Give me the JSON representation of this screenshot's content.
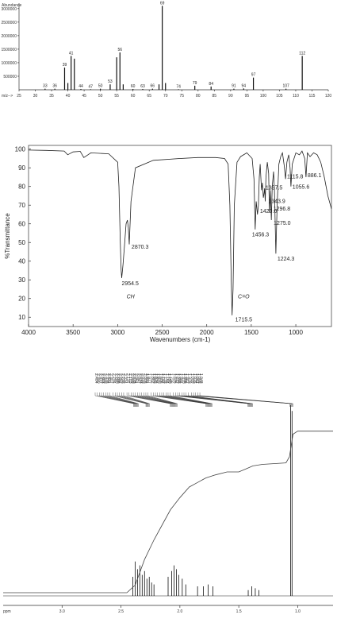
{
  "chart_data": [
    {
      "type": "bar",
      "title": "",
      "ylabel": "Abundance",
      "xlabel_short": "m/z-->",
      "xlim": [
        25,
        120
      ],
      "ylim": [
        0,
        3200000
      ],
      "xticks": [
        25,
        30,
        35,
        40,
        45,
        50,
        55,
        60,
        65,
        70,
        75,
        80,
        85,
        90,
        95,
        100,
        105,
        110,
        115,
        120
      ],
      "yticks": [
        500000,
        1000000,
        1500000,
        2000000,
        2500000,
        3000000
      ],
      "peaks": [
        {
          "mz": 33,
          "value": 40000,
          "label": "33"
        },
        {
          "mz": 36,
          "value": 40000,
          "label": "36"
        },
        {
          "mz": 39,
          "value": 820000,
          "label": "39"
        },
        {
          "mz": 40,
          "value": 250000,
          "label": ""
        },
        {
          "mz": 41,
          "value": 1250000,
          "label": "41"
        },
        {
          "mz": 42,
          "value": 1150000,
          "label": ""
        },
        {
          "mz": 44,
          "value": 30000,
          "label": "44"
        },
        {
          "mz": 47,
          "value": 20000,
          "label": "47"
        },
        {
          "mz": 50,
          "value": 40000,
          "label": "50"
        },
        {
          "mz": 53,
          "value": 200000,
          "label": "53"
        },
        {
          "mz": 55,
          "value": 1200000,
          "label": ""
        },
        {
          "mz": 56,
          "value": 1380000,
          "label": "56"
        },
        {
          "mz": 57,
          "value": 200000,
          "label": ""
        },
        {
          "mz": 60,
          "value": 30000,
          "label": "60"
        },
        {
          "mz": 63,
          "value": 30000,
          "label": "63"
        },
        {
          "mz": 66,
          "value": 40000,
          "label": "66"
        },
        {
          "mz": 68,
          "value": 200000,
          "label": ""
        },
        {
          "mz": 69,
          "value": 3100000,
          "label": "69"
        },
        {
          "mz": 70,
          "value": 250000,
          "label": ""
        },
        {
          "mz": 74,
          "value": 20000,
          "label": "74"
        },
        {
          "mz": 79,
          "value": 150000,
          "label": "79"
        },
        {
          "mz": 84,
          "value": 120000,
          "label": "84"
        },
        {
          "mz": 91,
          "value": 40000,
          "label": "91"
        },
        {
          "mz": 94,
          "value": 50000,
          "label": "94"
        },
        {
          "mz": 97,
          "value": 450000,
          "label": "97"
        },
        {
          "mz": 107,
          "value": 40000,
          "label": "107"
        },
        {
          "mz": 112,
          "value": 1250000,
          "label": "112"
        }
      ]
    },
    {
      "type": "line",
      "title": "",
      "xlabel": "Wavenumbers (cm-1)",
      "ylabel": "%Transmittance",
      "xlim": [
        4000,
        600
      ],
      "ylim": [
        5,
        102
      ],
      "xticks": [
        4000,
        3500,
        3000,
        2500,
        2000,
        1500,
        1000
      ],
      "yticks": [
        10,
        20,
        30,
        40,
        50,
        60,
        70,
        80,
        90,
        100
      ],
      "x": [
        4000,
        3800,
        3600,
        3560,
        3500,
        3420,
        3380,
        3300,
        3100,
        3000,
        2985,
        2970,
        2960,
        2954,
        2940,
        2920,
        2905,
        2890,
        2880,
        2870,
        2850,
        2800,
        2600,
        2300,
        2100,
        1900,
        1800,
        1760,
        1740,
        1725,
        1715,
        1705,
        1690,
        1660,
        1620,
        1550,
        1490,
        1470,
        1456,
        1445,
        1430,
        1420,
        1410,
        1400,
        1385,
        1375,
        1365,
        1357,
        1350,
        1343,
        1335,
        1320,
        1305,
        1296,
        1285,
        1275,
        1265,
        1250,
        1240,
        1224,
        1210,
        1190,
        1170,
        1150,
        1130,
        1115,
        1100,
        1080,
        1065,
        1055,
        1040,
        1000,
        960,
        930,
        900,
        886,
        870,
        840,
        800,
        760,
        720,
        680,
        640,
        600
      ],
      "y": [
        99.5,
        99.3,
        99,
        97,
        98.5,
        98.8,
        95.5,
        98,
        97.5,
        93,
        80,
        50,
        35,
        31,
        38,
        50,
        60,
        62,
        58,
        49,
        72,
        90,
        94,
        95,
        95.5,
        95.5,
        95,
        92,
        70,
        30,
        11,
        25,
        70,
        93,
        96,
        98,
        95,
        84,
        57,
        72,
        65,
        70,
        85,
        92,
        78,
        82,
        74,
        76,
        79,
        72,
        85,
        93,
        87,
        66,
        78,
        62,
        80,
        88,
        78,
        44,
        70,
        92,
        96,
        98,
        91,
        84,
        93,
        97,
        90,
        80,
        92,
        98,
        97,
        99,
        95,
        85,
        98,
        96,
        98,
        97,
        93,
        85,
        75,
        68
      ],
      "peak_labels": [
        {
          "x": 2954.5,
          "text": "2954.5"
        },
        {
          "x": 2870.3,
          "text": "2870.3"
        },
        {
          "x": 1715.5,
          "text": "1715.5"
        },
        {
          "x": 1456.3,
          "text": "1456.3"
        },
        {
          "x": 1420.0,
          "text": "1420.0"
        },
        {
          "x": 1357.5,
          "text": "1357.5"
        },
        {
          "x": 1343.9,
          "text": "1343.9"
        },
        {
          "x": 1296.8,
          "text": "1296.8"
        },
        {
          "x": 1275.0,
          "text": "1275.0"
        },
        {
          "x": 1224.3,
          "text": "1224.3"
        },
        {
          "x": 1115.8,
          "text": "1115.8"
        },
        {
          "x": 1055.6,
          "text": "1055.6"
        },
        {
          "x": 886.1,
          "text": "886.1"
        }
      ],
      "annotations": [
        {
          "text": "CH",
          "x": 2900
        },
        {
          "text": "C=O",
          "x": 1650
        }
      ]
    },
    {
      "type": "line",
      "title": "",
      "xlabel": "ppm",
      "xlim": [
        3.5,
        0.7
      ],
      "xticks": [
        3.0,
        2.5,
        2.0,
        1.5,
        1.0
      ],
      "xtick_labels": [
        "3.0",
        "2.5",
        "2.0",
        "1.5",
        "1.0"
      ],
      "multiplet_groups": [
        {
          "center_ppm": 2.37,
          "labels": [
            "2.404",
            "2.390",
            "2.377",
            "2.363",
            "2.349",
            "2.335",
            "2.321",
            "2.307"
          ]
        },
        {
          "center_ppm": 2.27,
          "labels": [
            "2.294",
            "2.280",
            "2.266",
            "2.252",
            "2.238",
            "2.224"
          ]
        },
        {
          "center_ppm": 2.05,
          "labels": [
            "2.116",
            "2.103",
            "2.089",
            "2.075",
            "2.061",
            "2.047",
            "2.033",
            "2.019",
            "2.005",
            "1.991",
            "1.977"
          ]
        },
        {
          "center_ppm": 1.75,
          "labels": [
            "1.862",
            "1.848",
            "1.834",
            "1.820",
            "1.806",
            "1.792",
            "1.778",
            "1.764",
            "1.750",
            "1.736"
          ]
        },
        {
          "center_ppm": 1.4,
          "labels": [
            "1.426",
            "1.412",
            "1.398",
            "1.384",
            "1.370",
            "1.356",
            "1.342",
            "1.328"
          ]
        },
        {
          "center_ppm": 1.05,
          "labels": [
            "1.089",
            "1.075",
            "1.061",
            "1.055",
            "1.048"
          ]
        }
      ],
      "peaks": [
        {
          "ppm": 2.4,
          "height": 0.1
        },
        {
          "ppm": 2.38,
          "height": 0.18
        },
        {
          "ppm": 2.36,
          "height": 0.14
        },
        {
          "ppm": 2.34,
          "height": 0.16
        },
        {
          "ppm": 2.32,
          "height": 0.11
        },
        {
          "ppm": 2.3,
          "height": 0.13
        },
        {
          "ppm": 2.28,
          "height": 0.09
        },
        {
          "ppm": 2.26,
          "height": 0.1
        },
        {
          "ppm": 2.24,
          "height": 0.07
        },
        {
          "ppm": 2.22,
          "height": 0.06
        },
        {
          "ppm": 2.1,
          "height": 0.1
        },
        {
          "ppm": 2.07,
          "height": 0.13
        },
        {
          "ppm": 2.05,
          "height": 0.16
        },
        {
          "ppm": 2.03,
          "height": 0.14
        },
        {
          "ppm": 2.01,
          "height": 0.11
        },
        {
          "ppm": 1.98,
          "height": 0.09
        },
        {
          "ppm": 1.95,
          "height": 0.06
        },
        {
          "ppm": 1.85,
          "height": 0.05
        },
        {
          "ppm": 1.8,
          "height": 0.05
        },
        {
          "ppm": 1.76,
          "height": 0.06
        },
        {
          "ppm": 1.72,
          "height": 0.05
        },
        {
          "ppm": 1.42,
          "height": 0.03
        },
        {
          "ppm": 1.39,
          "height": 0.05
        },
        {
          "ppm": 1.36,
          "height": 0.04
        },
        {
          "ppm": 1.33,
          "height": 0.03
        },
        {
          "ppm": 1.06,
          "height": 1.0
        },
        {
          "ppm": 1.048,
          "height": 0.97
        }
      ],
      "integral": {
        "x": [
          3.5,
          2.45,
          2.38,
          2.3,
          2.22,
          2.15,
          2.08,
          2.0,
          1.92,
          1.85,
          1.78,
          1.7,
          1.6,
          1.5,
          1.44,
          1.38,
          1.3,
          1.1,
          1.07,
          1.04,
          1.0,
          0.7
        ],
        "y": [
          0.0,
          0.0,
          0.05,
          0.22,
          0.35,
          0.45,
          0.55,
          0.63,
          0.7,
          0.73,
          0.76,
          0.78,
          0.8,
          0.8,
          0.82,
          0.84,
          0.85,
          0.86,
          0.9,
          1.05,
          1.07,
          1.07
        ]
      }
    }
  ]
}
